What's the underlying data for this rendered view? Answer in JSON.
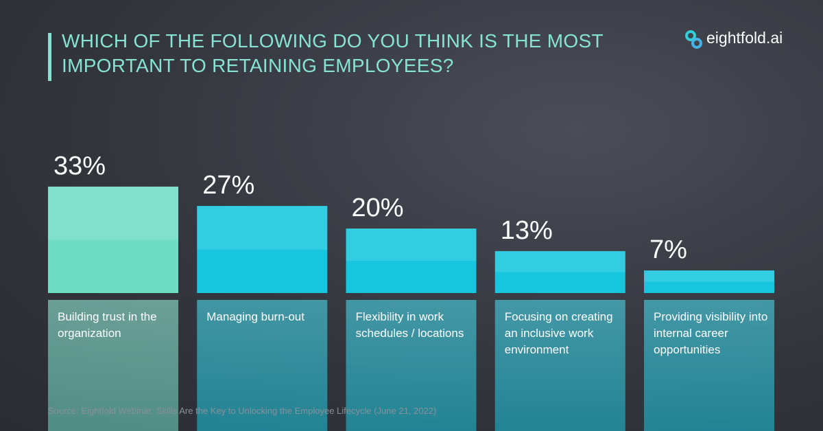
{
  "chart_data": {
    "type": "bar",
    "title": "WHICH OF THE FOLLOWING DO YOU THINK IS THE MOST IMPORTANT TO RETAINING EMPLOYEES?",
    "brand": "eightfold.ai",
    "categories": [
      "Building trust in the organization",
      "Managing burn-out",
      "Flexibility in work schedules / locations",
      "Focusing on creating an inclusive work environment",
      "Providing visibility into internal career opportunities"
    ],
    "values": [
      33,
      27,
      20,
      13,
      7
    ],
    "value_labels": [
      "33%",
      "27%",
      "20%",
      "13%",
      "7%"
    ],
    "colors": [
      "#6fdcc4",
      "#17c6de",
      "#17c6de",
      "#17c6de",
      "#17c6de"
    ],
    "source": "Source: Eightfold Webinar: Skills Are the Key to Unlocking the Employee Lifecycle (June 21, 2022)"
  }
}
